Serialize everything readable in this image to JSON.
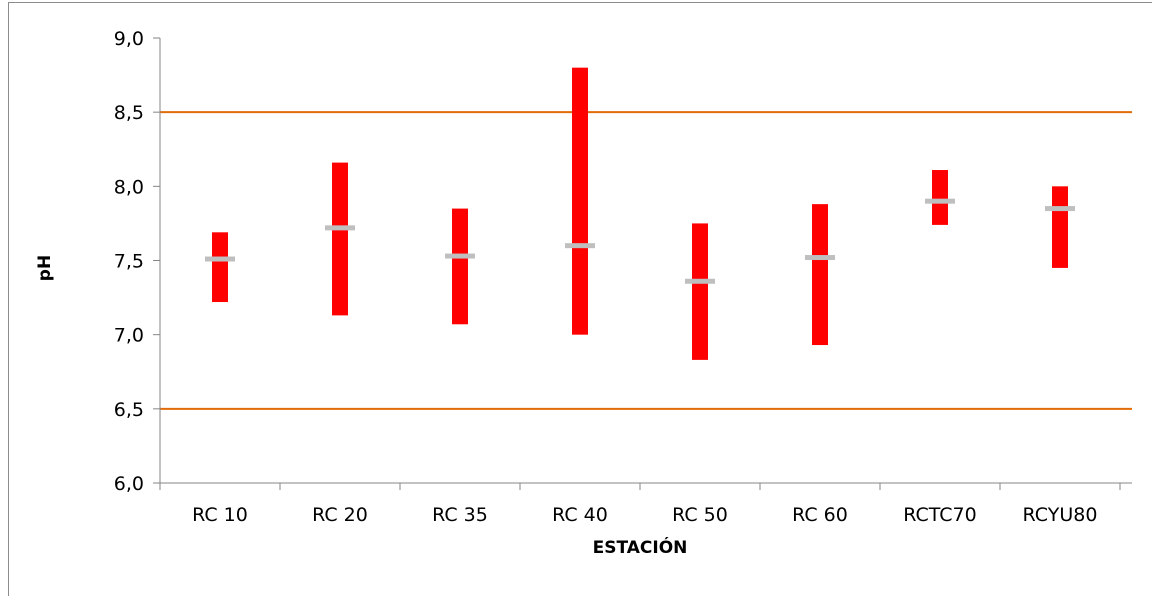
{
  "chart_data": {
    "type": "range",
    "title": "",
    "xlabel": "ESTACIÓN",
    "ylabel": "pH",
    "ylim": [
      6.0,
      9.0
    ],
    "yticks": [
      "6,0",
      "6,5",
      "7,0",
      "7,5",
      "8,0",
      "8,5",
      "9,0"
    ],
    "ytick_values": [
      6.0,
      6.5,
      7.0,
      7.5,
      8.0,
      8.5,
      9.0
    ],
    "categories": [
      "RC 10",
      "RC 20",
      "RC 35",
      "RC 40",
      "RC 50",
      "RC 60",
      "RCTC70",
      "RCYU80"
    ],
    "min": [
      7.22,
      7.13,
      7.07,
      7.0,
      6.83,
      6.93,
      7.74,
      7.45
    ],
    "max": [
      7.69,
      8.16,
      7.85,
      8.8,
      7.75,
      7.88,
      8.11,
      8.0
    ],
    "mean": [
      7.51,
      7.72,
      7.53,
      7.6,
      7.36,
      7.52,
      7.9,
      7.85
    ],
    "reference_lines": [
      6.5,
      8.5
    ],
    "grid": false,
    "legend": "none",
    "colors": {
      "range_bar": "#ff0000",
      "mean_marker": "#bfbfbf",
      "reference_line": "#e36c0a",
      "axis": "#868686"
    }
  }
}
